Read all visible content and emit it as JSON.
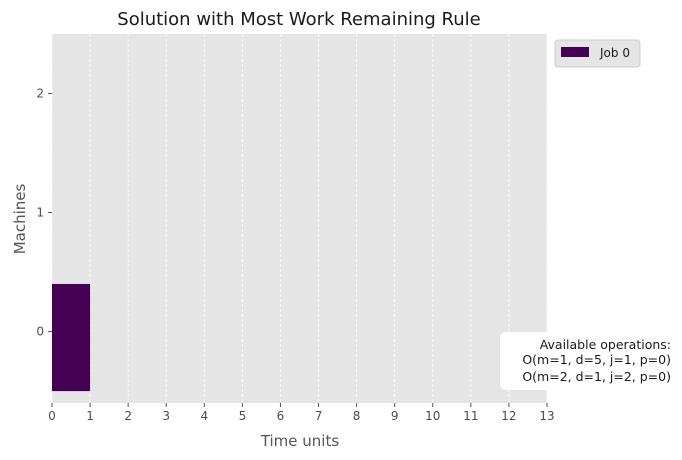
{
  "chart_data": {
    "type": "gantt",
    "title": "Solution with Most Work Remaining Rule",
    "xlabel": "Time units",
    "ylabel": "Machines",
    "xlim": [
      0,
      13
    ],
    "ylim": [
      -0.6,
      2.5
    ],
    "x_ticks": [
      "0",
      "1",
      "2",
      "3",
      "4",
      "5",
      "6",
      "7",
      "8",
      "9",
      "10",
      "11",
      "12",
      "13"
    ],
    "y_ticks": [
      "0",
      "1",
      "2"
    ],
    "grid": "vertical dashed",
    "legend": {
      "placement": "top-right outside",
      "entries": [
        {
          "name": "Job 0",
          "color": "#440154"
        }
      ]
    },
    "bars": [
      {
        "job": "Job 0",
        "machine": 0,
        "start": 0,
        "end": 1,
        "color": "#440154"
      }
    ],
    "annotation": {
      "title": "Available operations:",
      "lines": [
        "O(m=1, d=5, j=1, p=0)",
        "O(m=2, d=1, j=2, p=0)"
      ]
    }
  }
}
